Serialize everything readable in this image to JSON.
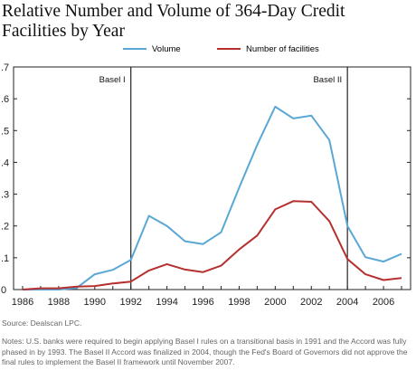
{
  "title": "Relative Number and Volume of 364-Day Credit Facilities by Year",
  "source": "Source: Dealscan LPC.",
  "notes": "Notes: U.S. banks were required to begin applying Basel I rules on a transitional basis in 1991 and the Accord was fully phased in by 1993. The Basel II Accord was finalized in 2004, though the Fed's Board of Governors did not approve the final rules to implement the Basel II framework until November 2007.",
  "chart_data": {
    "type": "line",
    "title": "Relative Number and Volume of 364-Day Credit Facilities by Year",
    "xlabel": "",
    "ylabel": "",
    "xlim": [
      1985.5,
      2007.5
    ],
    "ylim": [
      0,
      0.7
    ],
    "x_ticks": [
      1986,
      1988,
      1990,
      1992,
      1994,
      1996,
      1998,
      2000,
      2002,
      2004,
      2006
    ],
    "x_tick_labels": [
      "1986",
      "1988",
      "1990",
      "1992",
      "1994",
      "1996",
      "1998",
      "2000",
      "2002",
      "2004",
      "2006"
    ],
    "y_ticks": [
      0,
      0.1,
      0.2,
      0.3,
      0.4,
      0.5,
      0.6,
      0.7
    ],
    "y_tick_labels": [
      "0",
      ".1",
      ".2",
      ".3",
      ".4",
      ".5",
      ".6",
      ".7"
    ],
    "grid": false,
    "legend_position": "top-center",
    "x": [
      1986,
      1987,
      1988,
      1989,
      1990,
      1991,
      1992,
      1993,
      1994,
      1995,
      1996,
      1997,
      1998,
      1999,
      2000,
      2001,
      2002,
      2003,
      2004,
      2005,
      2006,
      2007
    ],
    "series": [
      {
        "name": "Volume",
        "color": "#5aa7d6",
        "values": [
          0.0,
          0.0,
          0.0,
          0.005,
          0.048,
          0.062,
          0.093,
          0.232,
          0.2,
          0.152,
          0.143,
          0.18,
          0.32,
          0.455,
          0.575,
          0.538,
          0.547,
          0.47,
          0.2,
          0.102,
          0.088,
          0.112
        ]
      },
      {
        "name": "Number of facilities",
        "color": "#b5302f",
        "values": [
          0.0,
          0.004,
          0.004,
          0.009,
          0.011,
          0.019,
          0.025,
          0.06,
          0.08,
          0.063,
          0.055,
          0.075,
          0.126,
          0.17,
          0.252,
          0.278,
          0.276,
          0.215,
          0.096,
          0.048,
          0.03,
          0.036
        ]
      }
    ],
    "annotations": [
      {
        "text": "Basel I",
        "x": 1992
      },
      {
        "text": "Basel II",
        "x": 2004
      }
    ]
  }
}
